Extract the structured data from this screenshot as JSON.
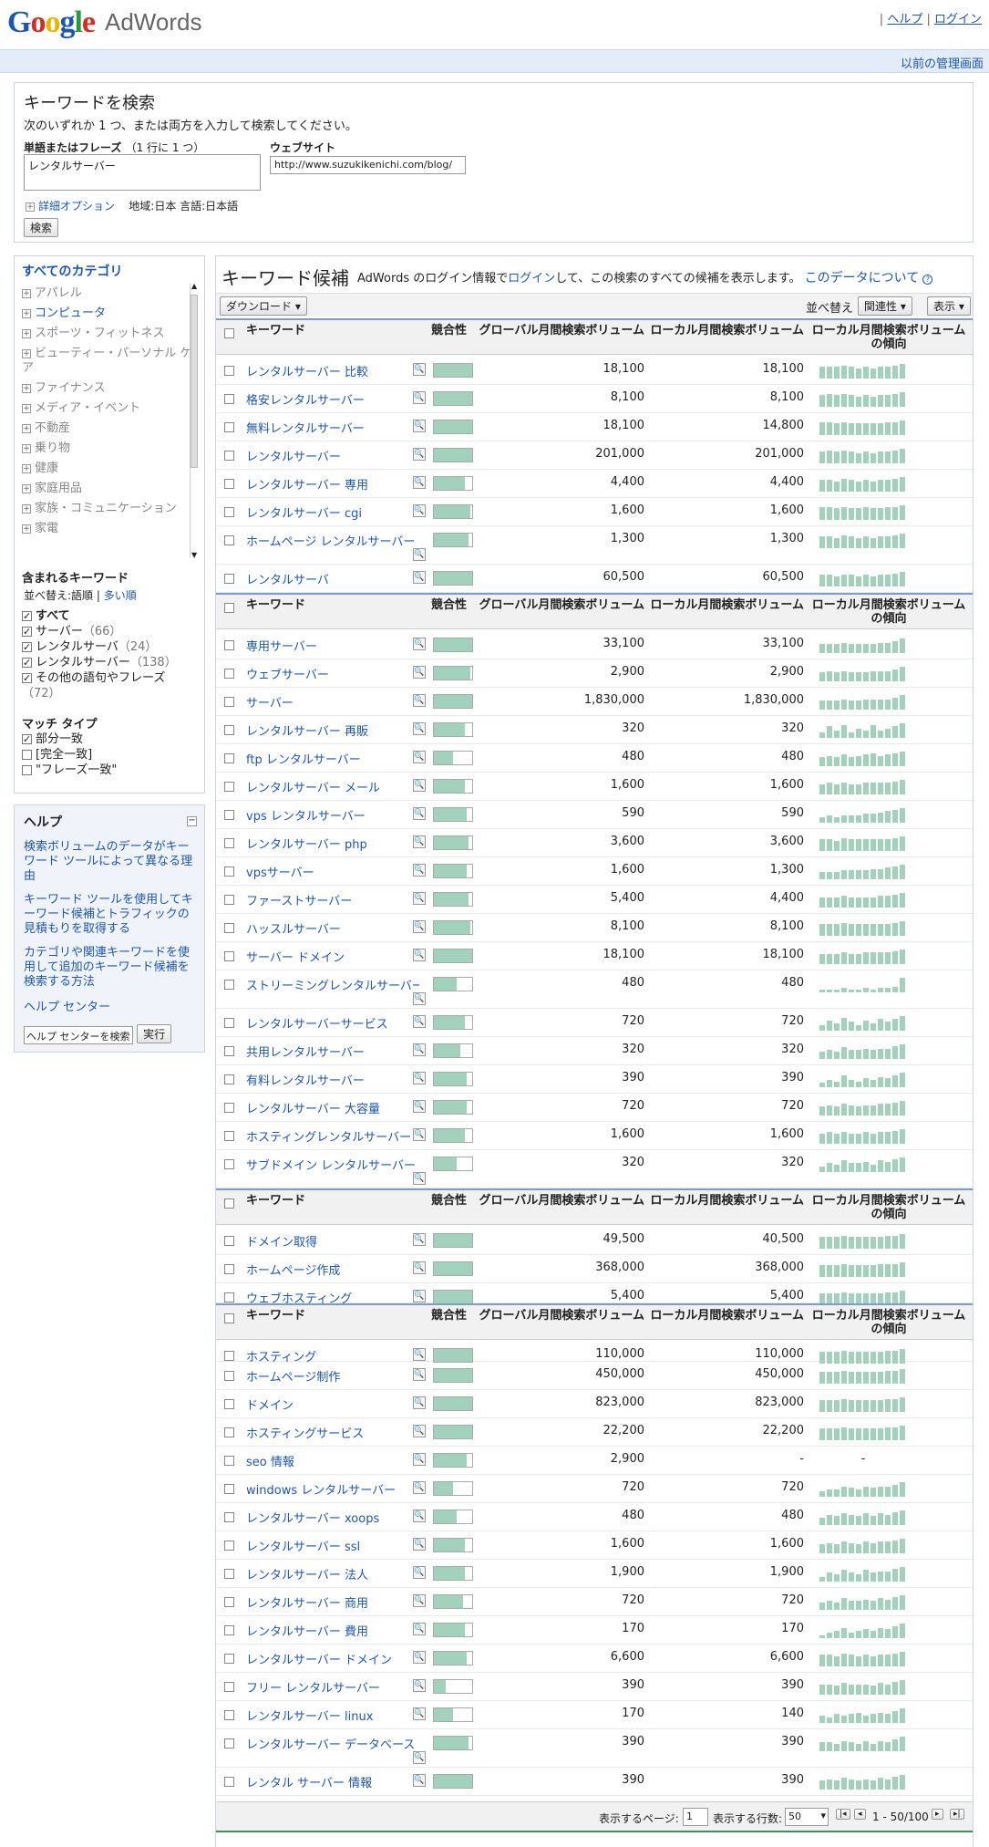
{
  "header": {
    "logo_letters": [
      {
        "ch": "G",
        "color": "#1b57b1"
      },
      {
        "ch": "o",
        "color": "#d62b1f"
      },
      {
        "ch": "o",
        "color": "#e9b300"
      },
      {
        "ch": "g",
        "color": "#1b57b1"
      },
      {
        "ch": "l",
        "color": "#2a9b3c"
      },
      {
        "ch": "e",
        "color": "#d62b1f"
      }
    ],
    "product": "AdWords",
    "help": "ヘルプ",
    "login": "ログイン",
    "old_ui": "以前の管理画面"
  },
  "search": {
    "title": "キーワードを検索",
    "desc": "次のいずれか 1 つ、または両方を入力して検索してください。",
    "phrase_label": "単語またはフレーズ",
    "phrase_hint": "（1 行に 1 つ）",
    "phrase_value": "レンタルサーバー",
    "site_label": "ウェブサイト",
    "site_value": "http://www.suzukikenichi.com/blog/",
    "adv_options": "詳細オプション",
    "region": "地域:日本  言語:日本語",
    "search_button": "検索"
  },
  "sidebar": {
    "cat_title": "すべてのカテゴリ",
    "categories": [
      {
        "label": "アパレル",
        "active": false
      },
      {
        "label": "コンピュータ",
        "active": true
      },
      {
        "label": "スポーツ・フィットネス",
        "active": false
      },
      {
        "label": "ビューティー・パーソナル ケア",
        "active": false
      },
      {
        "label": "ファイナンス",
        "active": false
      },
      {
        "label": "メディア・イベント",
        "active": false
      },
      {
        "label": "不動産",
        "active": false
      },
      {
        "label": "乗り物",
        "active": false
      },
      {
        "label": "健康",
        "active": false
      },
      {
        "label": "家庭用品",
        "active": false
      },
      {
        "label": "家族・コミュニケーション",
        "active": false
      },
      {
        "label": "家電",
        "active": false
      }
    ],
    "included_title": "含まれるキーワード",
    "sort_prefix": "並べ替え:",
    "sort_word": "語順",
    "sort_sep": "|",
    "sort_many": "多い順",
    "included": [
      {
        "label": "すべて",
        "count": "",
        "bold": true
      },
      {
        "label": "サーバー",
        "count": "（66）"
      },
      {
        "label": "レンタルサーバ",
        "count": "（24）"
      },
      {
        "label": "レンタルサーバー",
        "count": "（138）"
      },
      {
        "label": "その他の語句やフレーズ",
        "count": "（72）"
      }
    ],
    "match_title": "マッチ タイプ",
    "match": [
      {
        "label": "部分一致",
        "checked": true
      },
      {
        "label": "[完全一致]",
        "checked": false
      },
      {
        "label": "\"フレーズ一致\"",
        "checked": false
      }
    ]
  },
  "help": {
    "title": "ヘルプ",
    "links": [
      "検索ボリュームのデータがキーワード ツールによって異なる理由",
      "キーワード ツールを使用してキーワード候補とトラフィックの見積もりを取得する",
      "カテゴリや関連キーワードを使用して追加のキーワード候補を検索する方法"
    ],
    "center": "ヘルプ センター",
    "search_value": "ヘルプ センターを検索",
    "go": "実行"
  },
  "main": {
    "title": "キーワード候補",
    "sub1": "AdWords のログイン情報で",
    "sub_login": "ログイン",
    "sub2": "して、この検索のすべての候補を表示します。",
    "about": "このデータについて",
    "download": "ダウンロード",
    "sort_label": "並べ替え",
    "sort_value": "関連性",
    "view": "表示"
  },
  "columns": {
    "keyword": "キーワード",
    "competition": "競合性",
    "global": "グローバル月間検索ボリューム",
    "local": "ローカル月間検索ボリューム",
    "trend": "ローカル月間検索ボリュームの傾向"
  },
  "groups": [
    [
      {
        "kw": "レンタルサーバー 比較",
        "c": 1.0,
        "g": "18,100",
        "l": "18,100",
        "t": [
          0.8,
          0.8,
          0.8,
          0.9,
          0.8,
          0.7,
          0.8,
          0.7,
          0.8,
          0.8,
          0.9,
          1.0
        ]
      },
      {
        "kw": "格安レンタルサーバー",
        "c": 1.0,
        "g": "8,100",
        "l": "8,100",
        "t": [
          0.8,
          0.9,
          0.8,
          0.9,
          0.8,
          0.7,
          0.8,
          0.7,
          0.8,
          0.8,
          0.9,
          1.0
        ]
      },
      {
        "kw": "無料レンタルサーバー",
        "c": 1.0,
        "g": "18,100",
        "l": "14,800",
        "t": [
          0.9,
          0.9,
          0.8,
          0.9,
          0.8,
          0.8,
          0.8,
          0.8,
          0.8,
          0.9,
          0.9,
          1.0
        ]
      },
      {
        "kw": "レンタルサーバー",
        "c": 1.0,
        "g": "201,000",
        "l": "201,000",
        "t": [
          0.8,
          0.9,
          0.8,
          0.9,
          0.8,
          0.7,
          0.8,
          0.7,
          0.8,
          0.8,
          0.9,
          1.0
        ]
      },
      {
        "kw": "レンタルサーバー 専用",
        "c": 0.8,
        "g": "4,400",
        "l": "4,400",
        "t": [
          0.8,
          0.8,
          0.7,
          0.9,
          0.8,
          0.7,
          0.8,
          0.7,
          0.8,
          0.8,
          0.9,
          1.0
        ]
      },
      {
        "kw": "レンタルサーバー cgi",
        "c": 0.95,
        "g": "1,600",
        "l": "1,600",
        "t": [
          0.9,
          0.9,
          0.8,
          0.9,
          0.8,
          0.8,
          0.9,
          0.8,
          0.8,
          0.9,
          0.9,
          1.0
        ]
      },
      {
        "kw": "ホームページ レンタルサーバー",
        "c": 0.9,
        "g": "1,300",
        "l": "1,300",
        "t": [
          0.8,
          0.8,
          0.7,
          0.9,
          0.8,
          0.7,
          0.8,
          0.7,
          0.8,
          0.8,
          0.9,
          1.0
        ],
        "tall": true
      },
      {
        "kw": "レンタルサーバ",
        "c": 1.0,
        "g": "60,500",
        "l": "60,500",
        "t": [
          0.8,
          0.8,
          0.7,
          0.8,
          0.8,
          0.7,
          0.8,
          0.7,
          0.8,
          0.8,
          0.9,
          1.0
        ]
      }
    ],
    [
      {
        "kw": "専用サーバー",
        "c": 1.0,
        "g": "33,100",
        "l": "33,100",
        "t": [
          0.6,
          0.6,
          0.6,
          0.7,
          0.6,
          0.6,
          0.6,
          0.6,
          0.7,
          0.7,
          0.8,
          1.0
        ]
      },
      {
        "kw": "ウェブサーバー",
        "c": 0.95,
        "g": "2,900",
        "l": "2,900",
        "t": [
          0.6,
          0.7,
          0.6,
          0.7,
          0.6,
          0.6,
          0.6,
          0.7,
          0.7,
          0.7,
          0.8,
          1.0
        ]
      },
      {
        "kw": "サーバー",
        "c": 1.0,
        "g": "1,830,000",
        "l": "1,830,000",
        "t": [
          0.6,
          0.6,
          0.6,
          0.7,
          0.6,
          0.6,
          0.7,
          0.7,
          0.7,
          0.7,
          0.8,
          1.0
        ]
      },
      {
        "kw": "レンタルサーバー 再販",
        "c": 0.8,
        "g": "320",
        "l": "320",
        "t": [
          0.4,
          0.8,
          0.5,
          0.9,
          0.4,
          0.6,
          0.5,
          0.9,
          0.5,
          0.6,
          0.8,
          1.0
        ]
      },
      {
        "kw": "ftp レンタルサーバー",
        "c": 0.5,
        "g": "480",
        "l": "480",
        "t": [
          0.6,
          0.7,
          0.6,
          0.8,
          0.6,
          0.7,
          0.8,
          0.9,
          0.7,
          0.8,
          0.9,
          1.0
        ]
      },
      {
        "kw": "レンタルサーバー メール",
        "c": 0.8,
        "g": "1,600",
        "l": "1,600",
        "t": [
          0.7,
          0.8,
          0.7,
          0.8,
          0.7,
          0.7,
          0.8,
          0.8,
          0.8,
          0.8,
          0.9,
          1.0
        ]
      },
      {
        "kw": "vps レンタルサーバー",
        "c": 0.85,
        "g": "590",
        "l": "590",
        "t": [
          0.4,
          0.5,
          0.4,
          0.5,
          0.5,
          0.5,
          0.6,
          0.6,
          0.7,
          0.8,
          0.9,
          1.0
        ]
      },
      {
        "kw": "レンタルサーバー php",
        "c": 0.9,
        "g": "3,600",
        "l": "3,600",
        "t": [
          0.8,
          0.8,
          0.7,
          0.9,
          0.8,
          0.8,
          0.8,
          0.8,
          0.8,
          0.8,
          0.9,
          1.0
        ]
      },
      {
        "kw": "vpsサーバー",
        "c": 0.85,
        "g": "1,600",
        "l": "1,300",
        "t": [
          0.5,
          0.5,
          0.5,
          0.6,
          0.6,
          0.6,
          0.6,
          0.7,
          0.7,
          0.8,
          0.9,
          1.0
        ]
      },
      {
        "kw": "ファーストサーバー",
        "c": 0.9,
        "g": "5,400",
        "l": "4,400",
        "t": [
          0.7,
          0.7,
          0.7,
          0.8,
          0.7,
          0.7,
          0.7,
          0.7,
          0.8,
          0.8,
          0.9,
          1.0
        ]
      },
      {
        "kw": "ハッスルサーバー",
        "c": 0.95,
        "g": "8,100",
        "l": "8,100",
        "t": [
          0.8,
          0.8,
          0.8,
          0.9,
          0.8,
          0.8,
          0.8,
          0.8,
          0.8,
          0.8,
          0.9,
          1.0
        ]
      },
      {
        "kw": "サーバー ドメイン",
        "c": 1.0,
        "g": "18,100",
        "l": "18,100",
        "t": [
          0.7,
          0.7,
          0.7,
          0.8,
          0.7,
          0.7,
          0.8,
          0.8,
          0.8,
          0.8,
          0.9,
          1.0
        ]
      },
      {
        "kw": "ストリーミングレンタルサーバー",
        "c": 0.6,
        "g": "480",
        "l": "480",
        "t": [
          0.2,
          0.2,
          0.2,
          0.3,
          0.2,
          0.2,
          0.3,
          0.2,
          0.3,
          0.3,
          0.4,
          1.0
        ],
        "tall": true
      },
      {
        "kw": "レンタルサーバーサービス",
        "c": 0.8,
        "g": "720",
        "l": "720",
        "t": [
          0.4,
          0.7,
          0.5,
          0.9,
          0.6,
          0.4,
          0.7,
          0.5,
          0.8,
          0.6,
          0.8,
          1.0
        ]
      },
      {
        "kw": "共用レンタルサーバー",
        "c": 0.7,
        "g": "320",
        "l": "320",
        "t": [
          0.5,
          0.6,
          0.5,
          0.8,
          0.6,
          0.6,
          0.7,
          0.6,
          0.7,
          0.7,
          0.9,
          1.0
        ]
      },
      {
        "kw": "有料レンタルサーバー",
        "c": 0.85,
        "g": "390",
        "l": "390",
        "t": [
          0.3,
          0.5,
          0.4,
          0.8,
          0.5,
          0.4,
          0.6,
          0.5,
          0.7,
          0.6,
          0.8,
          1.0
        ]
      },
      {
        "kw": "レンタルサーバー 大容量",
        "c": 0.85,
        "g": "720",
        "l": "720",
        "t": [
          0.6,
          0.7,
          0.6,
          0.8,
          0.7,
          0.6,
          0.7,
          0.7,
          0.8,
          0.8,
          0.9,
          1.0
        ]
      },
      {
        "kw": "ホスティングレンタルサーバー",
        "c": 0.8,
        "g": "1,600",
        "l": "1,600",
        "t": [
          0.7,
          0.8,
          0.7,
          0.8,
          0.7,
          0.7,
          0.8,
          0.7,
          0.8,
          0.8,
          0.9,
          1.0
        ]
      },
      {
        "kw": "サブドメイン レンタルサーバー",
        "c": 0.6,
        "g": "320",
        "l": "320",
        "t": [
          0.4,
          0.6,
          0.5,
          0.8,
          0.6,
          0.6,
          0.7,
          0.5,
          0.8,
          0.7,
          0.9,
          1.0
        ],
        "tall": true
      }
    ],
    [
      {
        "kw": "ドメイン取得",
        "c": 1.0,
        "g": "49,500",
        "l": "40,500",
        "t": [
          0.8,
          0.8,
          0.8,
          0.9,
          0.8,
          0.8,
          0.8,
          0.8,
          0.8,
          0.9,
          0.9,
          1.0
        ]
      },
      {
        "kw": "ホームページ作成",
        "c": 1.0,
        "g": "368,000",
        "l": "368,000",
        "t": [
          0.8,
          0.8,
          0.8,
          0.9,
          0.8,
          0.8,
          0.8,
          0.8,
          0.9,
          0.9,
          0.9,
          1.0
        ]
      },
      {
        "kw": "ウェブホスティング",
        "c": 1.0,
        "g": "5,400",
        "l": "5,400",
        "t": [
          0.8,
          0.8,
          0.8,
          0.9,
          0.8,
          0.8,
          0.8,
          0.8,
          0.8,
          0.9,
          0.9,
          1.0
        ],
        "short": true
      }
    ],
    [
      {
        "kw": "ホスティング",
        "c": 1.0,
        "g": "110,000",
        "l": "110,000",
        "t": [
          0.8,
          0.8,
          0.8,
          0.9,
          0.8,
          0.8,
          0.8,
          0.8,
          0.8,
          0.9,
          0.9,
          1.0
        ],
        "short": true
      },
      {
        "kw": "ホームページ制作",
        "c": 1.0,
        "g": "450,000",
        "l": "450,000",
        "t": [
          0.8,
          0.8,
          0.8,
          0.9,
          0.8,
          0.8,
          0.8,
          0.8,
          0.8,
          0.9,
          0.9,
          1.0
        ]
      },
      {
        "kw": "ドメイン",
        "c": 1.0,
        "g": "823,000",
        "l": "823,000",
        "t": [
          0.8,
          0.8,
          0.8,
          0.9,
          0.8,
          0.8,
          0.8,
          0.8,
          0.8,
          0.9,
          0.9,
          1.0
        ]
      },
      {
        "kw": "ホスティングサービス",
        "c": 1.0,
        "g": "22,200",
        "l": "22,200",
        "t": [
          0.8,
          0.8,
          0.8,
          0.9,
          0.8,
          0.8,
          0.8,
          0.8,
          0.8,
          0.9,
          0.9,
          1.0
        ]
      },
      {
        "kw": "seo 情報",
        "c": 0.85,
        "g": "2,900",
        "l": "-",
        "t": [],
        "dash": true
      },
      {
        "kw": "windows レンタルサーバー",
        "c": 0.5,
        "g": "720",
        "l": "720",
        "t": [
          0.4,
          0.5,
          0.5,
          0.7,
          0.6,
          0.5,
          0.7,
          0.6,
          0.7,
          0.7,
          0.8,
          1.0
        ]
      },
      {
        "kw": "レンタルサーバー xoops",
        "c": 0.6,
        "g": "480",
        "l": "480",
        "t": [
          0.5,
          0.7,
          0.6,
          0.8,
          0.7,
          0.6,
          0.8,
          0.6,
          0.8,
          0.7,
          0.9,
          1.0
        ]
      },
      {
        "kw": "レンタルサーバー ssl",
        "c": 0.8,
        "g": "1,600",
        "l": "1,600",
        "t": [
          0.6,
          0.7,
          0.6,
          0.8,
          0.7,
          0.6,
          0.8,
          0.7,
          0.8,
          0.8,
          0.9,
          1.0
        ]
      },
      {
        "kw": "レンタルサーバー 法人",
        "c": 0.8,
        "g": "1,900",
        "l": "1,900",
        "t": [
          0.3,
          0.6,
          0.5,
          0.8,
          0.6,
          0.5,
          0.8,
          0.6,
          0.7,
          0.7,
          0.9,
          1.0
        ]
      },
      {
        "kw": "レンタルサーバー 商用",
        "c": 0.75,
        "g": "720",
        "l": "720",
        "t": [
          0.5,
          0.6,
          0.5,
          0.8,
          0.6,
          0.6,
          0.7,
          0.6,
          0.8,
          0.7,
          0.9,
          1.0
        ]
      },
      {
        "kw": "レンタルサーバー 費用",
        "c": 0.8,
        "g": "170",
        "l": "170",
        "t": [
          0.2,
          0.4,
          0.5,
          0.7,
          0.4,
          0.5,
          0.6,
          0.5,
          0.7,
          0.6,
          0.8,
          1.0
        ]
      },
      {
        "kw": "レンタルサーバー ドメイン",
        "c": 0.85,
        "g": "6,600",
        "l": "6,600",
        "t": [
          0.8,
          0.8,
          0.7,
          0.9,
          0.8,
          0.7,
          0.8,
          0.7,
          0.8,
          0.8,
          0.9,
          1.0
        ]
      },
      {
        "kw": "フリー レンタルサーバー",
        "c": 0.3,
        "g": "390",
        "l": "390",
        "t": [
          0.7,
          0.7,
          0.6,
          0.8,
          0.7,
          0.7,
          0.7,
          0.6,
          0.8,
          0.7,
          0.9,
          1.0
        ]
      },
      {
        "kw": "レンタルサーバー linux",
        "c": 0.5,
        "g": "170",
        "l": "140",
        "t": [
          0.5,
          0.4,
          0.6,
          0.5,
          0.6,
          0.7,
          0.5,
          0.6,
          0.7,
          0.6,
          0.8,
          1.0
        ]
      },
      {
        "kw": "レンタルサーバー データベース",
        "c": 0.9,
        "g": "390",
        "l": "390",
        "t": [
          0.6,
          0.6,
          0.5,
          0.7,
          0.6,
          0.5,
          0.7,
          0.5,
          0.7,
          0.6,
          0.8,
          1.0
        ],
        "tall": true
      },
      {
        "kw": "レンタル サーバー 情報",
        "c": 1.0,
        "g": "390",
        "l": "390",
        "t": [
          0.6,
          0.7,
          0.6,
          0.8,
          0.7,
          0.6,
          0.7,
          0.6,
          0.8,
          0.7,
          0.9,
          1.0
        ]
      }
    ]
  ],
  "footer": {
    "page_label": "表示するページ:",
    "page_value": "1",
    "rows_label": "表示する行数:",
    "rows_value": "50",
    "range": "1 - 50/100"
  }
}
